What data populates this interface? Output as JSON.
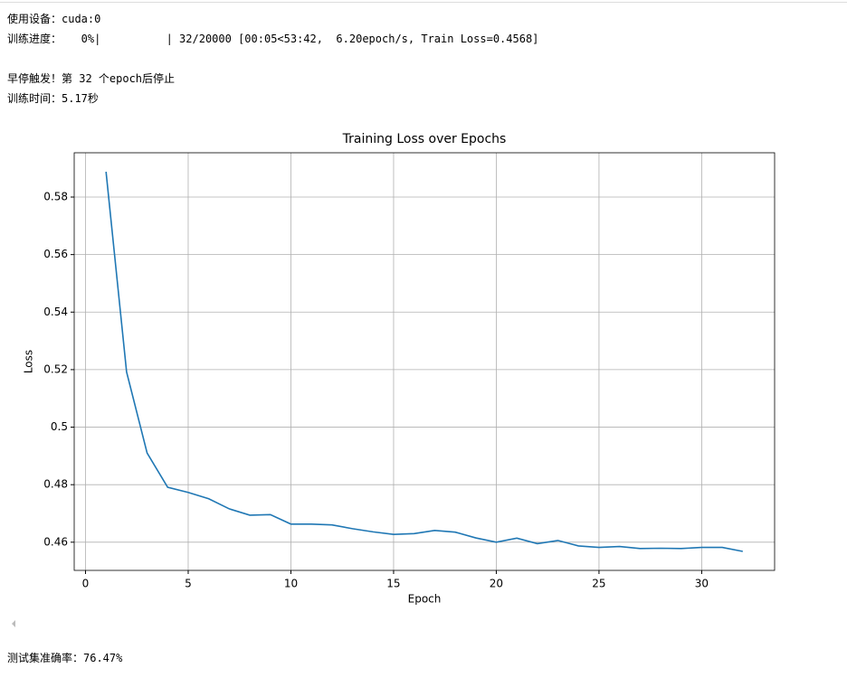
{
  "output": [
    "使用设备：cuda:0",
    "训练进度：   0%|          | 32/20000 [00:05<53:42,  6.20epoch/s, Train Loss=0.4568]",
    "早停触发！第 32 个epoch后停止",
    "训练时间：5.17秒"
  ],
  "chart_data": {
    "type": "line",
    "title": "Training Loss over Epochs",
    "x_label": "Epoch",
    "y_label": "Loss",
    "x": [
      1,
      2,
      3,
      4,
      5,
      6,
      7,
      8,
      9,
      10,
      11,
      12,
      13,
      14,
      15,
      16,
      17,
      18,
      19,
      20,
      21,
      22,
      23,
      24,
      25,
      26,
      27,
      28,
      29,
      30,
      31,
      32
    ],
    "series": [
      {
        "name": "Train Loss",
        "color": "#1f77b4",
        "values": [
          0.5888,
          0.5192,
          0.491,
          0.4791,
          0.4773,
          0.4751,
          0.4716,
          0.4694,
          0.4696,
          0.4663,
          0.4663,
          0.466,
          0.4647,
          0.4636,
          0.4627,
          0.463,
          0.4641,
          0.4635,
          0.4615,
          0.46,
          0.4614,
          0.4595,
          0.4606,
          0.4587,
          0.4582,
          0.4585,
          0.4578,
          0.4579,
          0.4578,
          0.4582,
          0.4582,
          0.4568
        ]
      }
    ],
    "xlim": [
      -0.55,
      33.55
    ],
    "ylim": [
      0.4502,
      0.5954
    ],
    "xticks": [
      0,
      5,
      10,
      15,
      20,
      25,
      30
    ],
    "yticks": [
      0.46,
      0.48,
      0.5,
      0.52,
      0.54,
      0.56,
      0.58
    ],
    "grid": true
  },
  "result": "测试集准确率：76.47%"
}
